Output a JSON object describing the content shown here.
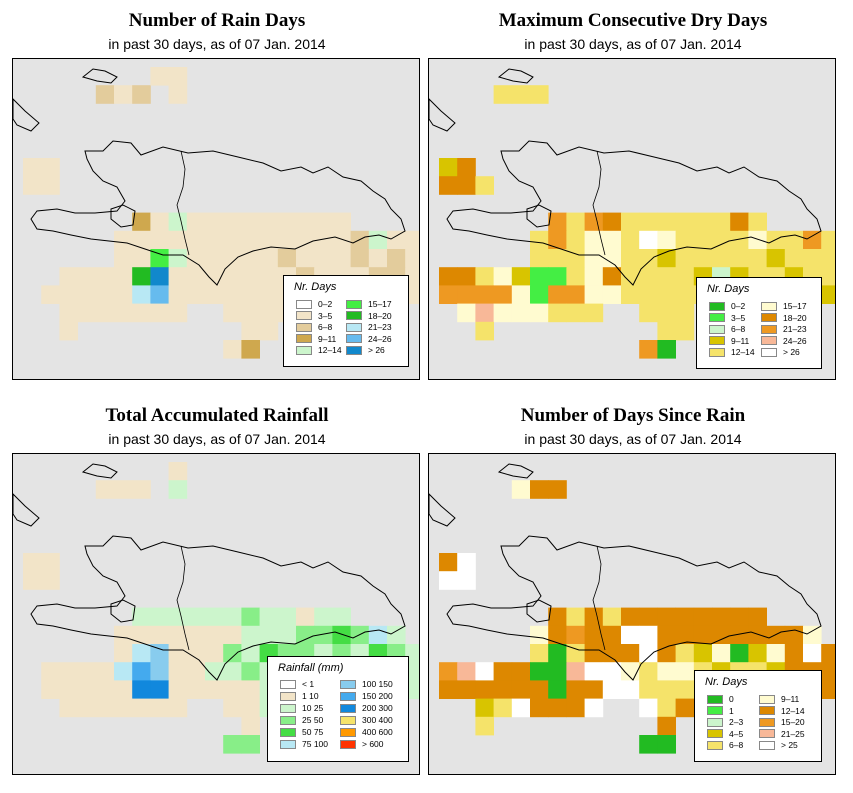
{
  "panels": [
    {
      "title": "Number of Rain Days",
      "subtitle": "in past 30 days, as of  07 Jan. 2014",
      "legend": {
        "title": "Nr. Days",
        "items": [
          {
            "label": "0–2",
            "color": "#ffffff"
          },
          {
            "label": "3–5",
            "color": "#f2e4c8"
          },
          {
            "label": "6–8",
            "color": "#e3cc9c"
          },
          {
            "label": "9–11",
            "color": "#cfa84e"
          },
          {
            "label": "12–14",
            "color": "#ccf5cc"
          },
          {
            "label": "15–17",
            "color": "#44ee44"
          },
          {
            "label": "18–20",
            "color": "#22bb22"
          },
          {
            "label": "21–23",
            "color": "#b8e8f4"
          },
          {
            "label": "24–26",
            "color": "#66bbee"
          },
          {
            "label": "> 26",
            "color": "#1188cc"
          }
        ]
      }
    },
    {
      "title": "Maximum Consecutive Dry Days",
      "subtitle": "in past 30 days, as of  07 Jan. 2014",
      "legend": {
        "title": "Nr. Days",
        "items": [
          {
            "label": "0–2",
            "color": "#22bb22"
          },
          {
            "label": "3–5",
            "color": "#44ee44"
          },
          {
            "label": "6–8",
            "color": "#ccf5cc"
          },
          {
            "label": "9–11",
            "color": "#d8c400"
          },
          {
            "label": "12–14",
            "color": "#f5e36a"
          },
          {
            "label": "15–17",
            "color": "#fffbd0"
          },
          {
            "label": "18–20",
            "color": "#dd8800"
          },
          {
            "label": "21–23",
            "color": "#ee9922"
          },
          {
            "label": "24–26",
            "color": "#f8b898"
          },
          {
            "label": "> 26",
            "color": "#ffffff"
          }
        ]
      }
    },
    {
      "title": "Total Accumulated Rainfall",
      "subtitle": "in past 30 days, as of  07 Jan. 2014",
      "legend": {
        "title": "Rainfall (mm)",
        "items": [
          {
            "label": "< 1",
            "color": "#ffffff"
          },
          {
            "label": "1    10",
            "color": "#f2e4c8"
          },
          {
            "label": "10    25",
            "color": "#ccf5cc"
          },
          {
            "label": "25    50",
            "color": "#88ee88"
          },
          {
            "label": "50    75",
            "color": "#44dd44"
          },
          {
            "label": "75  100",
            "color": "#b8e8f4"
          },
          {
            "label": "100  150",
            "color": "#88ccee"
          },
          {
            "label": "150  200",
            "color": "#44aaee"
          },
          {
            "label": "200  300",
            "color": "#1188dd"
          },
          {
            "label": "300  400",
            "color": "#f5e36a"
          },
          {
            "label": "400  600",
            "color": "#ff9900"
          },
          {
            "label": "> 600",
            "color": "#ff3300"
          }
        ]
      }
    },
    {
      "title": "Number of Days Since Rain",
      "subtitle": "in past 30 days, as of  07 Jan. 2014",
      "legend": {
        "title": "Nr. Days",
        "items": [
          {
            "label": "0",
            "color": "#22bb22"
          },
          {
            "label": "1",
            "color": "#44ee44"
          },
          {
            "label": "2–3",
            "color": "#ccf5cc"
          },
          {
            "label": "4–5",
            "color": "#d8c400"
          },
          {
            "label": "6–8",
            "color": "#f5e36a"
          },
          {
            "label": "9–11",
            "color": "#fffbd0"
          },
          {
            "label": "12–14",
            "color": "#dd8800"
          },
          {
            "label": "15–20",
            "color": "#ee9922"
          },
          {
            "label": "21–25",
            "color": "#f8b898"
          },
          {
            "label": "> 25",
            "color": "#ffffff"
          }
        ]
      }
    }
  ]
}
